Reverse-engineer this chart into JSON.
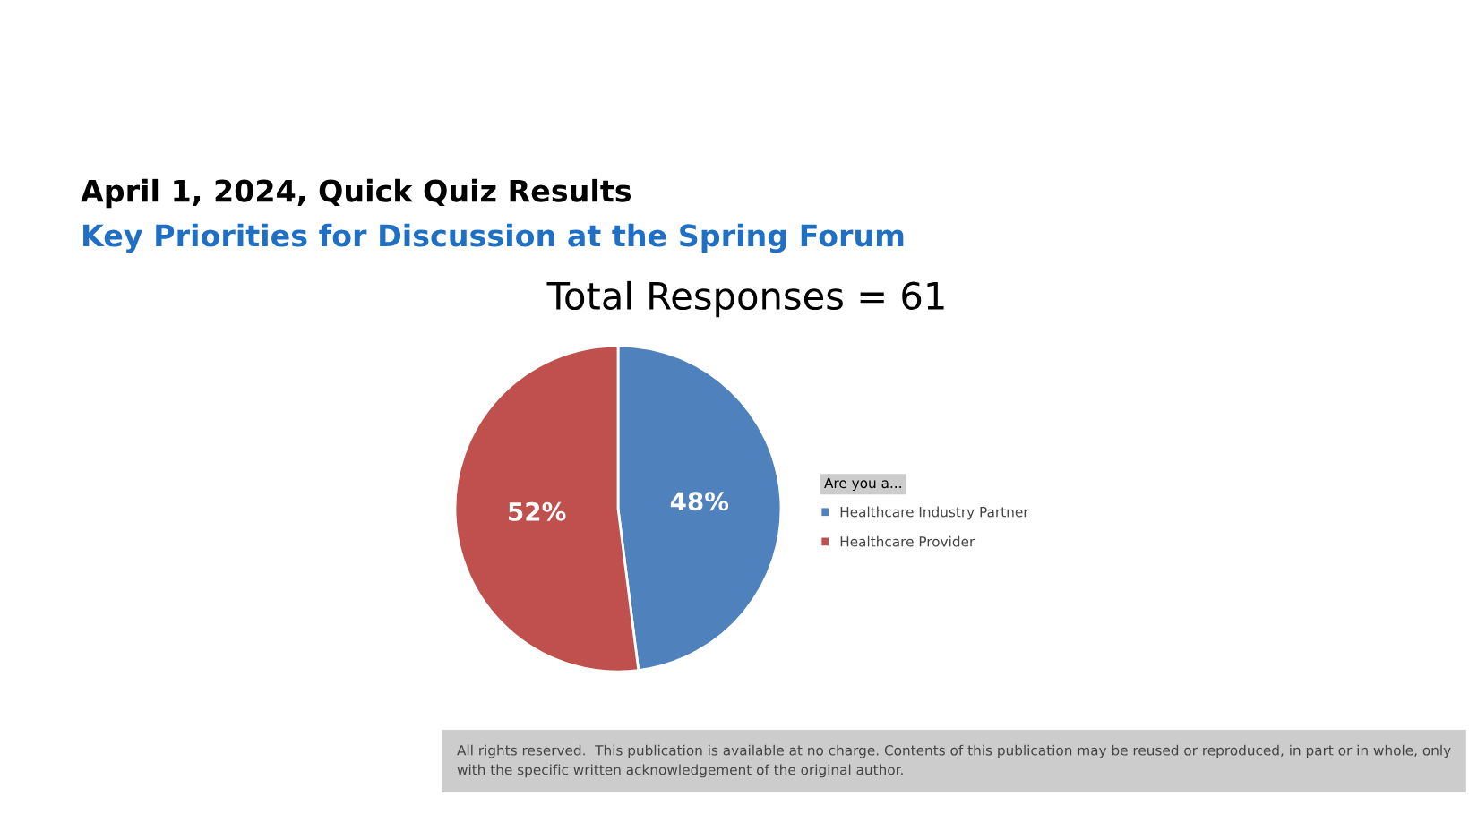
{
  "chart_data": {
    "type": "pie",
    "title": "April 1, 2024, Quick Quiz Results",
    "subtitle": "Key Priorities for Discussion at the Spring Forum",
    "annotations": [
      "Total Responses = 61",
      "All rights reserved.  This publication is available at no charge. Contents of this publication may be reused or reproduced, in part or in whole, only with the specific written acknowledgement of the original author."
    ],
    "legend_title": "Are you a...",
    "legend": "right",
    "categories": [
      "Healthcare Industry Partner",
      "Healthcare Provider"
    ],
    "values": [
      48,
      52
    ],
    "colors": [
      "#4f81bd",
      "#c0504d"
    ],
    "value_labels": [
      "48%",
      "52%"
    ]
  }
}
